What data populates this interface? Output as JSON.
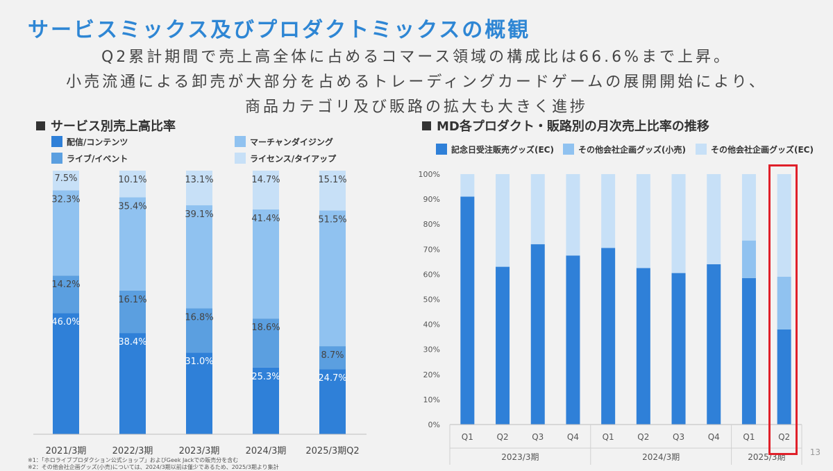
{
  "title": "サービスミックス及びプロダクトミックスの概観",
  "subtitle_lines": [
    "Q2累計期間で売上高全体に占めるコマース領域の構成比は66.6%まで上昇。",
    "小売流通による卸売が大部分を占めるトレーディングカードゲームの展開開始により、",
    "商品カテゴリ及び販路の拡大も大きく進捗"
  ],
  "page_number": "13",
  "footnotes": [
    "※1：「ホロライブプロダクション公式ショップ」およびGeek Jackでの販売分を含む",
    "※2：その他会社企画グッズ(小売)については、2024/3期以前は僅少であるため、2025/3期より集計"
  ],
  "colors": {
    "dark": "#2f80d8",
    "mid": "#5b9fe0",
    "light": "#90c2f0",
    "pale": "#c7e0f7",
    "highlight": "#e0202a"
  },
  "left_chart_title": "サービス別売上高比率",
  "right_chart_title": "MD各プロダクト・販路別の月次売上比率の推移",
  "chart_data": [
    {
      "type": "bar",
      "stacked": true,
      "percent": true,
      "title": "サービス別売上高比率",
      "categories": [
        "2021/3期",
        "2022/3期",
        "2023/3期",
        "2024/3期",
        "2025/3期Q2"
      ],
      "legend_placement": "top",
      "series": [
        {
          "name": "配信/コンテンツ",
          "color": "#2f80d8",
          "values": [
            46.0,
            38.4,
            31.0,
            25.3,
            24.7
          ],
          "labels": [
            "46.0%",
            "38.4%",
            "31.0%",
            "25.3%",
            "24.7%"
          ]
        },
        {
          "name": "ライブ/イベント",
          "color": "#5b9fe0",
          "values": [
            14.2,
            16.1,
            16.8,
            18.6,
            8.7
          ],
          "labels": [
            "14.2%",
            "16.1%",
            "16.8%",
            "18.6%",
            "8.7%"
          ]
        },
        {
          "name": "マーチャンダイジング",
          "color": "#90c2f0",
          "values": [
            32.3,
            35.4,
            39.1,
            41.4,
            51.5
          ],
          "labels": [
            "32.3%",
            "35.4%",
            "39.1%",
            "41.4%",
            "51.5%"
          ]
        },
        {
          "name": "ライセンス/タイアップ",
          "color": "#c7e0f7",
          "values": [
            7.5,
            10.1,
            13.1,
            14.7,
            15.1
          ],
          "labels": [
            "7.5%",
            "10.1%",
            "13.1%",
            "14.7%",
            "15.1%"
          ]
        }
      ],
      "legend_order": [
        "配信/コンテンツ",
        "マーチャンダイジング",
        "ライブ/イベント",
        "ライセンス/タイアップ"
      ]
    },
    {
      "type": "bar",
      "stacked": true,
      "percent": true,
      "title": "MD各プロダクト・販路別の月次売上比率の推移",
      "categories": [
        "Q1",
        "Q2",
        "Q3",
        "Q4",
        "Q1",
        "Q2",
        "Q3",
        "Q4",
        "Q1",
        "Q2"
      ],
      "groups": [
        {
          "label": "2023/3期",
          "count": 4
        },
        {
          "label": "2024/3期",
          "count": 4
        },
        {
          "label": "2025/3期",
          "count": 2
        }
      ],
      "ylim": [
        0,
        100
      ],
      "yticks": [
        "0%",
        "10%",
        "20%",
        "30%",
        "40%",
        "50%",
        "60%",
        "70%",
        "80%",
        "90%",
        "100%"
      ],
      "legend_placement": "top",
      "highlight_index": 9,
      "series": [
        {
          "name": "記念日受注販売グッズ(EC)",
          "color": "#2f80d8",
          "values": [
            91,
            63,
            72,
            67.5,
            70.5,
            62.5,
            60.5,
            64,
            58.5,
            38
          ]
        },
        {
          "name": "その他会社企画グッズ(小売)",
          "color": "#90c2f0",
          "values": [
            0,
            0,
            0,
            0,
            0,
            0,
            0,
            0,
            15,
            21
          ]
        },
        {
          "name": "その他会社企画グッズ(EC)",
          "color": "#c7e0f7",
          "values": [
            9,
            37,
            28,
            32.5,
            29.5,
            37.5,
            39.5,
            36,
            26.5,
            41
          ]
        }
      ]
    }
  ]
}
